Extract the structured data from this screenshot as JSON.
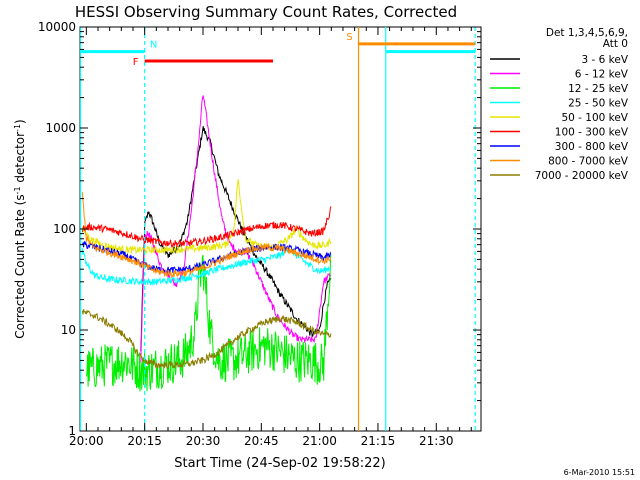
{
  "chart_data": {
    "type": "line",
    "title": "HESSI Observing Summary Count Rates, Corrected",
    "xlabel": "Start Time (24-Sep-02 19:58:22)",
    "ylabel": "Corrected Count Rate (s⁻¹ detector⁻¹)",
    "ylabel_parts": [
      "Corrected Count Rate (s",
      "-1",
      " detector",
      "-1",
      ")"
    ],
    "y_scale": "log",
    "xlim_minutes": [
      1198.37,
      1301.5
    ],
    "ylim": [
      1,
      10000
    ],
    "x_ticks": [
      {
        "label": "20:00",
        "t": 1200
      },
      {
        "label": "20:15",
        "t": 1215
      },
      {
        "label": "20:30",
        "t": 1230
      },
      {
        "label": "20:45",
        "t": 1245
      },
      {
        "label": "21:00",
        "t": 1260
      },
      {
        "label": "21:15",
        "t": 1275
      },
      {
        "label": "21:30",
        "t": 1290
      }
    ],
    "y_ticks": [
      {
        "label": "1",
        "v": 1
      },
      {
        "label": "10",
        "v": 10
      },
      {
        "label": "100",
        "v": 100
      },
      {
        "label": "1000",
        "v": 1000
      },
      {
        "label": "10000",
        "v": 10000
      }
    ],
    "legend": {
      "position": "right",
      "header": [
        "Det 1,3,4,5,6,9,",
        "Att 0"
      ],
      "entries": [
        {
          "label": "3 - 6 keV",
          "color": "#000000"
        },
        {
          "label": "6 - 12 keV",
          "color": "#ff00ff"
        },
        {
          "label": "12 - 25 keV",
          "color": "#00ee00"
        },
        {
          "label": "25 - 50 keV",
          "color": "#00ffff"
        },
        {
          "label": "50 - 100 keV",
          "color": "#e6e600"
        },
        {
          "label": "100 - 300 keV",
          "color": "#ff0000"
        },
        {
          "label": "300 - 800 keV",
          "color": "#0000ff"
        },
        {
          "label": "800 - 7000 keV",
          "color": "#ff8c00"
        },
        {
          "label": "7000 - 20000 keV",
          "color": "#8b7d00"
        }
      ]
    },
    "series": [
      {
        "name": "3 - 6 keV",
        "color": "#000000",
        "points": [
          [
            1214,
            6
          ],
          [
            1215,
            110
          ],
          [
            1216,
            150
          ],
          [
            1217,
            120
          ],
          [
            1219,
            70
          ],
          [
            1221,
            55
          ],
          [
            1224,
            70
          ],
          [
            1226,
            120
          ],
          [
            1228,
            350
          ],
          [
            1230,
            1000
          ],
          [
            1232,
            700
          ],
          [
            1234,
            350
          ],
          [
            1236,
            230
          ],
          [
            1238,
            150
          ],
          [
            1240,
            100
          ],
          [
            1242,
            70
          ],
          [
            1244,
            50
          ],
          [
            1246,
            40
          ],
          [
            1248,
            30
          ],
          [
            1250,
            22
          ],
          [
            1252,
            17
          ],
          [
            1254,
            13
          ],
          [
            1256,
            11
          ],
          [
            1258,
            9
          ],
          [
            1260,
            10
          ],
          [
            1261,
            18
          ],
          [
            1262,
            28
          ],
          [
            1263,
            32
          ]
        ]
      },
      {
        "name": "6 - 12 keV",
        "color": "#ff00ff",
        "points": [
          [
            1214,
            5
          ],
          [
            1215,
            85
          ],
          [
            1216,
            90
          ],
          [
            1217,
            75
          ],
          [
            1219,
            45
          ],
          [
            1221,
            35
          ],
          [
            1223,
            28
          ],
          [
            1225,
            40
          ],
          [
            1227,
            150
          ],
          [
            1229,
            800
          ],
          [
            1230,
            2200
          ],
          [
            1231,
            1200
          ],
          [
            1233,
            350
          ],
          [
            1235,
            120
          ],
          [
            1237,
            70
          ],
          [
            1239,
            60
          ],
          [
            1241,
            60
          ],
          [
            1243,
            45
          ],
          [
            1245,
            30
          ],
          [
            1247,
            20
          ],
          [
            1249,
            14
          ],
          [
            1251,
            11
          ],
          [
            1253,
            9
          ],
          [
            1255,
            8
          ],
          [
            1257,
            8
          ],
          [
            1259,
            8
          ],
          [
            1261,
            30
          ],
          [
            1263,
            36
          ]
        ]
      },
      {
        "name": "12 - 25 keV",
        "color": "#00ee00",
        "points": [
          [
            1200,
            4
          ],
          [
            1205,
            4.5
          ],
          [
            1210,
            5
          ],
          [
            1214,
            4
          ],
          [
            1216,
            4
          ],
          [
            1220,
            4.5
          ],
          [
            1224,
            5
          ],
          [
            1226,
            6
          ],
          [
            1228,
            10
          ],
          [
            1229,
            30
          ],
          [
            1230,
            45
          ],
          [
            1231,
            20
          ],
          [
            1232,
            9
          ],
          [
            1234,
            5
          ],
          [
            1238,
            5
          ],
          [
            1242,
            6
          ],
          [
            1246,
            7
          ],
          [
            1250,
            6
          ],
          [
            1254,
            5
          ],
          [
            1258,
            5
          ],
          [
            1261,
            4.5
          ],
          [
            1263,
            60
          ]
        ]
      },
      {
        "name": "25 - 50 keV",
        "color": "#00ffff",
        "points": [
          [
            1199,
            60
          ],
          [
            1200,
            45
          ],
          [
            1202,
            35
          ],
          [
            1205,
            32
          ],
          [
            1210,
            31
          ],
          [
            1214,
            30
          ],
          [
            1218,
            30
          ],
          [
            1222,
            31
          ],
          [
            1226,
            33
          ],
          [
            1230,
            36
          ],
          [
            1234,
            40
          ],
          [
            1238,
            44
          ],
          [
            1242,
            48
          ],
          [
            1246,
            50
          ],
          [
            1250,
            55
          ],
          [
            1252,
            65
          ],
          [
            1254,
            55
          ],
          [
            1256,
            48
          ],
          [
            1258,
            42
          ],
          [
            1260,
            38
          ],
          [
            1262,
            40
          ],
          [
            1263,
            42
          ]
        ]
      },
      {
        "name": "50 - 100 keV",
        "color": "#e6e600",
        "points": [
          [
            1199,
            100
          ],
          [
            1201,
            80
          ],
          [
            1204,
            70
          ],
          [
            1208,
            64
          ],
          [
            1212,
            62
          ],
          [
            1216,
            62
          ],
          [
            1220,
            62
          ],
          [
            1224,
            63
          ],
          [
            1228,
            64
          ],
          [
            1232,
            66
          ],
          [
            1236,
            70
          ],
          [
            1238,
            100
          ],
          [
            1239,
            320
          ],
          [
            1240,
            150
          ],
          [
            1241,
            80
          ],
          [
            1244,
            68
          ],
          [
            1248,
            66
          ],
          [
            1252,
            80
          ],
          [
            1254,
            100
          ],
          [
            1256,
            80
          ],
          [
            1258,
            70
          ],
          [
            1260,
            68
          ],
          [
            1262,
            70
          ],
          [
            1263,
            80
          ]
        ]
      },
      {
        "name": "100 - 300 keV",
        "color": "#ff0000",
        "points": [
          [
            1199,
            100
          ],
          [
            1201,
            105
          ],
          [
            1205,
            100
          ],
          [
            1210,
            90
          ],
          [
            1214,
            80
          ],
          [
            1218,
            75
          ],
          [
            1222,
            72
          ],
          [
            1226,
            72
          ],
          [
            1230,
            76
          ],
          [
            1234,
            82
          ],
          [
            1238,
            90
          ],
          [
            1242,
            100
          ],
          [
            1246,
            108
          ],
          [
            1250,
            110
          ],
          [
            1254,
            100
          ],
          [
            1258,
            90
          ],
          [
            1261,
            95
          ],
          [
            1263,
            160
          ]
        ]
      },
      {
        "name": "300 - 800 keV",
        "color": "#0000ff",
        "points": [
          [
            1199,
            70
          ],
          [
            1201,
            68
          ],
          [
            1205,
            62
          ],
          [
            1210,
            55
          ],
          [
            1214,
            45
          ],
          [
            1218,
            40
          ],
          [
            1222,
            39
          ],
          [
            1226,
            40
          ],
          [
            1230,
            44
          ],
          [
            1234,
            50
          ],
          [
            1238,
            56
          ],
          [
            1242,
            62
          ],
          [
            1246,
            66
          ],
          [
            1250,
            66
          ],
          [
            1254,
            62
          ],
          [
            1258,
            56
          ],
          [
            1261,
            52
          ],
          [
            1263,
            55
          ]
        ]
      },
      {
        "name": "800 - 7000 keV",
        "color": "#ff8c00",
        "points": [
          [
            1199,
            220
          ],
          [
            1200,
            80
          ],
          [
            1202,
            65
          ],
          [
            1205,
            60
          ],
          [
            1210,
            52
          ],
          [
            1214,
            45
          ],
          [
            1218,
            38
          ],
          [
            1222,
            36
          ],
          [
            1226,
            37
          ],
          [
            1230,
            41
          ],
          [
            1234,
            48
          ],
          [
            1238,
            56
          ],
          [
            1242,
            63
          ],
          [
            1246,
            66
          ],
          [
            1250,
            64
          ],
          [
            1254,
            58
          ],
          [
            1258,
            52
          ],
          [
            1261,
            48
          ],
          [
            1263,
            52
          ]
        ]
      },
      {
        "name": "7000 - 20000 keV",
        "color": "#8b7d00",
        "points": [
          [
            1199,
            15
          ],
          [
            1202,
            14
          ],
          [
            1205,
            12
          ],
          [
            1208,
            10
          ],
          [
            1211,
            8
          ],
          [
            1213,
            6
          ],
          [
            1215,
            5
          ],
          [
            1218,
            4.5
          ],
          [
            1222,
            4.5
          ],
          [
            1226,
            4.6
          ],
          [
            1230,
            5
          ],
          [
            1234,
            6
          ],
          [
            1238,
            8
          ],
          [
            1242,
            10
          ],
          [
            1246,
            12
          ],
          [
            1250,
            13
          ],
          [
            1254,
            12
          ],
          [
            1258,
            10
          ],
          [
            1261,
            9
          ],
          [
            1263,
            9
          ]
        ]
      }
    ],
    "annotations": {
      "flags": [
        {
          "letter": "N",
          "color": "#00ffff",
          "t_start": 1215,
          "t_end": 1215,
          "level": 5700
        },
        {
          "letter": "F",
          "color": "#ff0000",
          "t_start": 1215,
          "t_end": 1248,
          "level": 4600
        },
        {
          "letter": "S",
          "color": "#ff8c00",
          "t_start": 1270,
          "t_end": 1300,
          "level": 6800
        }
      ],
      "saa_bar": {
        "color": "#00ffff",
        "segments": [
          [
            1198.37,
            1215
          ],
          [
            1277,
            1300
          ]
        ],
        "level": 5700
      },
      "vlines": [
        {
          "t": 1198.5,
          "color": "#00ffff",
          "style": "solid"
        },
        {
          "t": 1215,
          "color": "#00ffff",
          "style": "dashed"
        },
        {
          "t": 1270,
          "color": "#ff8c00",
          "style": "solid"
        },
        {
          "t": 1277,
          "color": "#00ffff",
          "style": "solid"
        },
        {
          "t": 1300,
          "color": "#00ffff",
          "style": "dashed"
        }
      ]
    }
  },
  "footer": {
    "timestamp": "6-Mar-2010 15:51"
  }
}
